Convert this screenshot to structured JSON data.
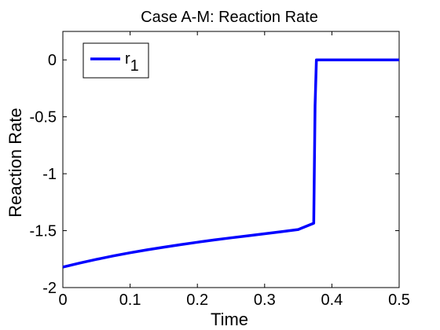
{
  "chart_data": {
    "type": "line",
    "title": "Case A-M: Reaction Rate",
    "xlabel": "Time",
    "ylabel": "Reaction Rate",
    "xlim": [
      0,
      0.5
    ],
    "ylim": [
      -2,
      0.25
    ],
    "x_ticks": [
      0,
      0.1,
      0.2,
      0.3,
      0.4,
      0.5
    ],
    "x_tick_labels": [
      "0",
      "0.1",
      "0.2",
      "0.3",
      "0.4",
      "0.5"
    ],
    "y_ticks": [
      -2,
      -1.5,
      -1,
      -0.5,
      0
    ],
    "y_tick_labels": [
      "-2",
      "-1.5",
      "-1",
      "-0.5",
      "0"
    ],
    "grid": false,
    "legend_position": "top-left",
    "series": [
      {
        "name": "r",
        "name_subscript": "1",
        "color": "#0000ff",
        "x": [
          0,
          0.025,
          0.05,
          0.075,
          0.1,
          0.125,
          0.15,
          0.175,
          0.2,
          0.225,
          0.25,
          0.275,
          0.3,
          0.325,
          0.35,
          0.373,
          0.375,
          0.377,
          0.4,
          0.45,
          0.5
        ],
        "y": [
          -1.82,
          -1.785,
          -1.752,
          -1.722,
          -1.694,
          -1.669,
          -1.645,
          -1.623,
          -1.602,
          -1.582,
          -1.563,
          -1.545,
          -1.527,
          -1.509,
          -1.49,
          -1.435,
          -0.4,
          0,
          0,
          0,
          0
        ]
      }
    ]
  }
}
